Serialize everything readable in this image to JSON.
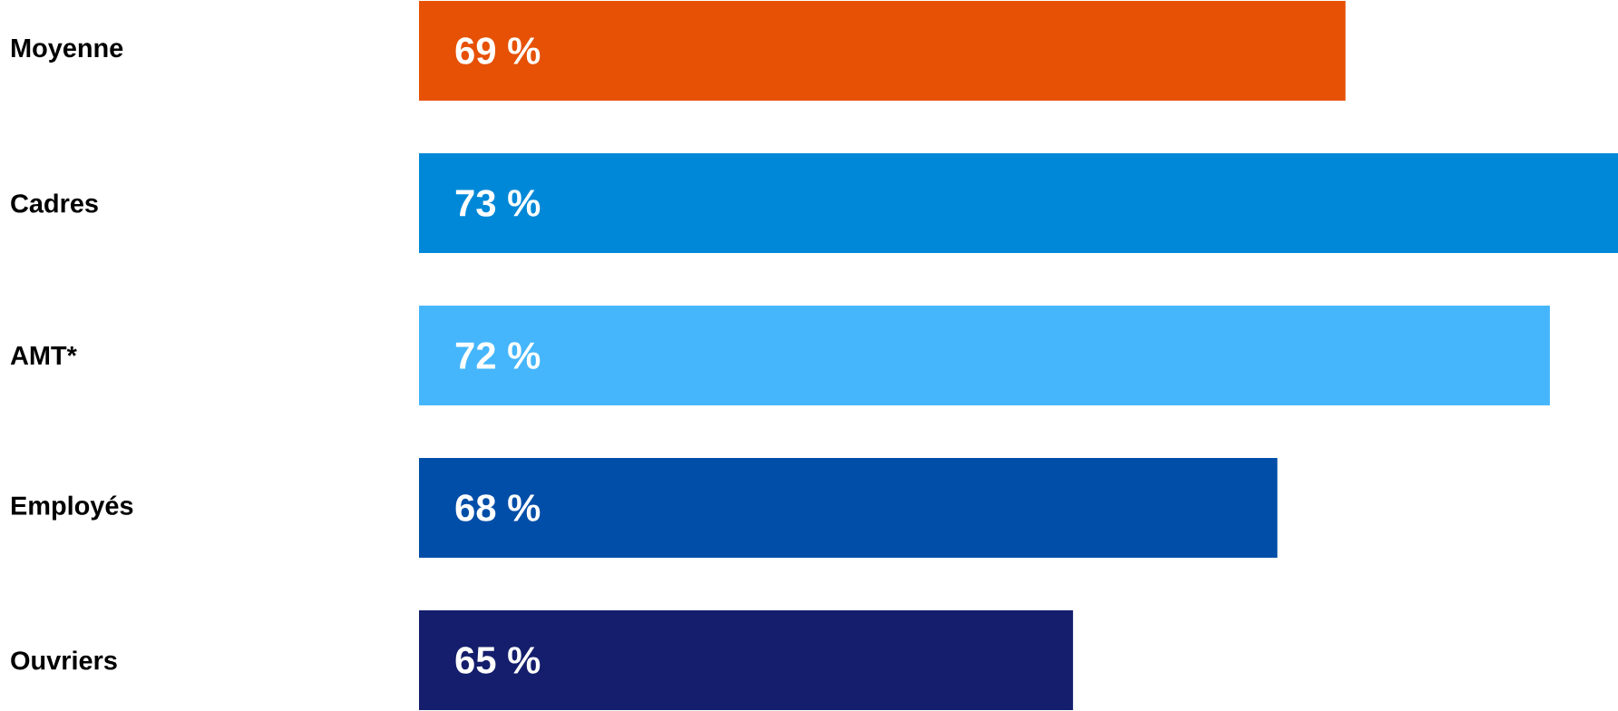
{
  "chart_data": {
    "type": "bar",
    "orientation": "horizontal",
    "categories": [
      "Moyenne",
      "Cadres",
      "AMT*",
      "Employés",
      "Ouvriers"
    ],
    "values": [
      69,
      73,
      72,
      68,
      65
    ],
    "value_labels": [
      "69 %",
      "73 %",
      "72 %",
      "68 %",
      "65 %"
    ],
    "colors": [
      "#e65105",
      "#0088d8",
      "#45b6fc",
      "#004ea8",
      "#141e6c"
    ],
    "xlim": [
      55.4,
      73
    ],
    "tick_labels": "y"
  }
}
